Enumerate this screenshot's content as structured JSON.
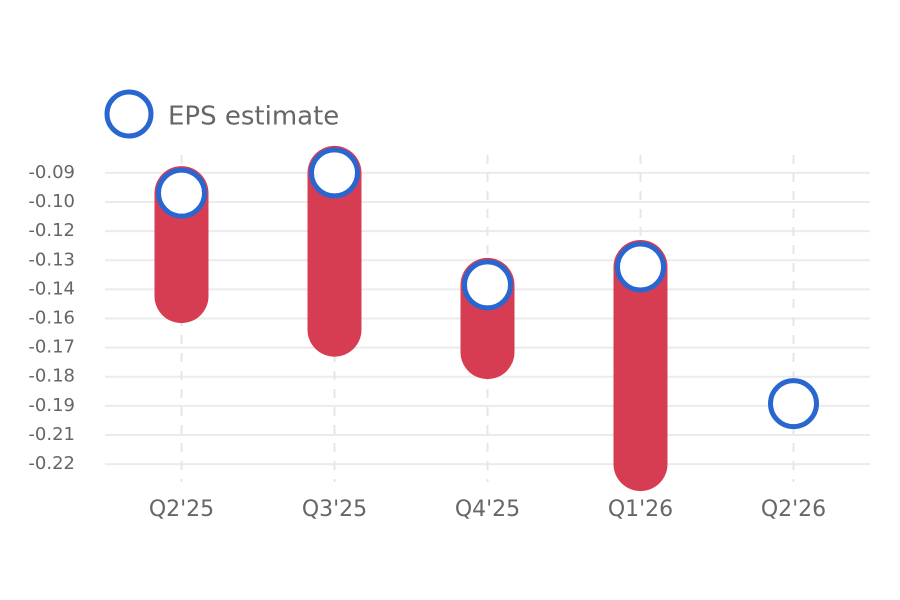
{
  "chart_data": {
    "type": "eps",
    "categories": [
      "Q2'25",
      "Q3'25",
      "Q4'25",
      "Q1'26",
      "Q2'26"
    ],
    "series": [
      {
        "name": "EPS estimate",
        "color": "#2a66d0",
        "values": [
          -0.099,
          -0.09,
          -0.14,
          -0.132,
          -0.193
        ]
      },
      {
        "color": "#d63d53",
        "values": [
          -0.145,
          -0.16,
          -0.17,
          -0.22,
          null
        ]
      }
    ],
    "ylim": [
      -0.082,
      -0.228
    ],
    "yticks": [
      {
        "value": -0.09,
        "label": "-0.09"
      },
      {
        "value": -0.103,
        "label": "-0.10"
      },
      {
        "value": -0.116,
        "label": "-0.12"
      },
      {
        "value": -0.129,
        "label": "-0.13"
      },
      {
        "value": -0.142,
        "label": "-0.14"
      },
      {
        "value": -0.155,
        "label": "-0.16"
      },
      {
        "value": -0.168,
        "label": "-0.17"
      },
      {
        "value": -0.181,
        "label": "-0.18"
      },
      {
        "value": -0.194,
        "label": "-0.19"
      },
      {
        "value": -0.207,
        "label": "-0.21"
      },
      {
        "value": -0.22,
        "label": "-0.22"
      }
    ],
    "grid": true
  }
}
